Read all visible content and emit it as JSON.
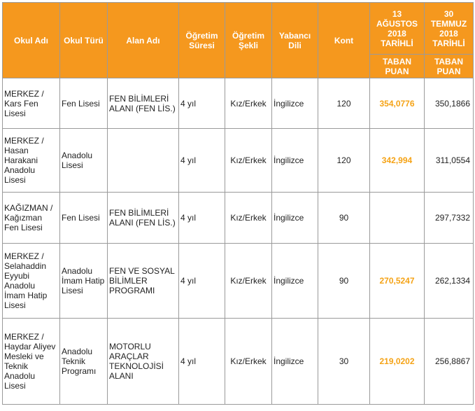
{
  "headers": {
    "okul_adi": "Okul Adı",
    "okul_turu": "Okul Türü",
    "alan_adi": "Alan Adı",
    "ogretim_suresi": "Öğretim Süresi",
    "ogretim_sekli": "Öğretim Şekli",
    "yabanci_dili": "Yabancı Dili",
    "kont": "Kont",
    "date_1": "13 AĞUSTOS 2018 TARİHLİ",
    "date_2": "30 TEMMUZ 2018 TARİHLİ",
    "taban_puan_1": "TABAN PUAN",
    "taban_puan_2": "TABAN PUAN"
  },
  "rows": [
    {
      "okul_adi": "MERKEZ / Kars Fen Lisesi",
      "okul_turu": "Fen Lisesi",
      "alan_adi": "FEN BİLİMLERİ ALANI (FEN LİS.)",
      "ogretim_suresi": "4 yıl",
      "ogretim_sekli": "Kız/Erkek",
      "yabanci_dili": "İngilizce",
      "kont": "120",
      "puan_1": "354,0776",
      "puan_2": "350,1866"
    },
    {
      "okul_adi": "MERKEZ / Hasan Harakani Anadolu Lisesi",
      "okul_turu": "Anadolu Lisesi",
      "alan_adi": "",
      "ogretim_suresi": "4 yıl",
      "ogretim_sekli": "Kız/Erkek",
      "yabanci_dili": "İngilizce",
      "kont": "120",
      "puan_1": "342,994",
      "puan_2": "311,0554"
    },
    {
      "okul_adi": "KAĞIZMAN / Kağızman Fen Lisesi",
      "okul_turu": "Fen Lisesi",
      "alan_adi": "FEN BİLİMLERİ ALANI (FEN LİS.)",
      "ogretim_suresi": "4 yıl",
      "ogretim_sekli": "Kız/Erkek",
      "yabanci_dili": "İngilizce",
      "kont": "90",
      "puan_1": "",
      "puan_2": "297,7332"
    },
    {
      "okul_adi": "MERKEZ / Selahaddin Eyyubi Anadolu İmam Hatip Lisesi",
      "okul_turu": "Anadolu İmam Hatip Lisesi",
      "alan_adi": "FEN VE SOSYAL BİLİMLER PROGRAMI",
      "ogretim_suresi": "4 yıl",
      "ogretim_sekli": "Kız/Erkek",
      "yabanci_dili": "İngilizce",
      "kont": "90",
      "puan_1": "270,5247",
      "puan_2": "262,1334"
    },
    {
      "okul_adi": "MERKEZ / Haydar Aliyev Mesleki ve Teknik Anadolu Lisesi",
      "okul_turu": "Anadolu Teknik Programı",
      "alan_adi": "MOTORLU ARAÇLAR TEKNOLOJİSİ ALANI",
      "ogretim_suresi": "4 yıl",
      "ogretim_sekli": "Kız/Erkek",
      "yabanci_dili": "İngilizce",
      "kont": "30",
      "puan_1": "219,0202",
      "puan_2": "256,8867"
    }
  ],
  "colors": {
    "header_bg": "#f5981e",
    "highlight_text": "#f5a316"
  }
}
